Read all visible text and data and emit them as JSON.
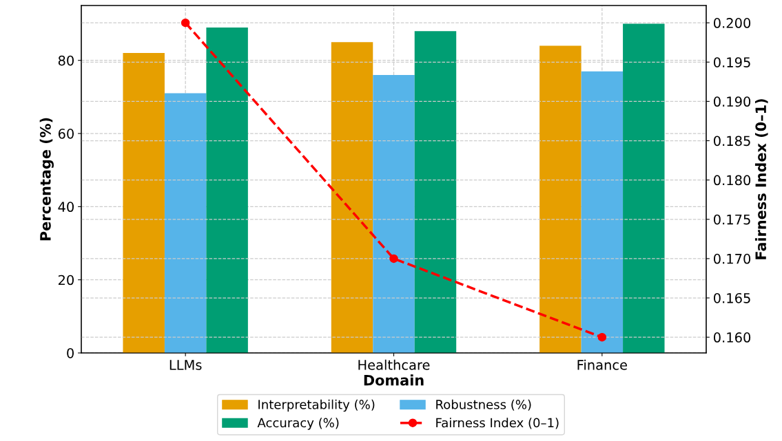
{
  "chart_data": {
    "type": "bar",
    "categories": [
      "LLMs",
      "Healthcare",
      "Finance"
    ],
    "xlabel": "Domain",
    "ylabel": "Percentage (%)",
    "y2label": "Fairness Index (0–1)",
    "series": [
      {
        "name": "Interpretability (%)",
        "color": "#e69f00",
        "values": [
          82,
          85,
          84
        ]
      },
      {
        "name": "Robustness (%)",
        "color": "#56b4e9",
        "values": [
          71,
          76,
          77
        ]
      },
      {
        "name": "Accuracy (%)",
        "color": "#009e73",
        "values": [
          89,
          88,
          90
        ]
      },
      {
        "name": "Fairness Index (0–1)",
        "type": "line",
        "axis": "y2",
        "color": "#ff0000",
        "values": [
          0.2,
          0.17,
          0.16
        ],
        "marker": "circle",
        "line_style": "dashed"
      }
    ],
    "ylim": [
      0,
      95
    ],
    "yticks": [
      0,
      20,
      40,
      60,
      80
    ],
    "y2lim": [
      0.158,
      0.2022
    ],
    "y2ticks": [
      {
        "value": 0.16,
        "label": "0.160"
      },
      0.165,
      {
        "value": 0.17,
        "label": "0.170"
      },
      0.175,
      {
        "value": 0.18,
        "label": "0.180"
      },
      0.185,
      {
        "value": 0.19,
        "label": "0.190"
      },
      0.195,
      {
        "value": 0.2,
        "label": "0.200"
      }
    ],
    "grid": true,
    "legend": "bottom"
  }
}
